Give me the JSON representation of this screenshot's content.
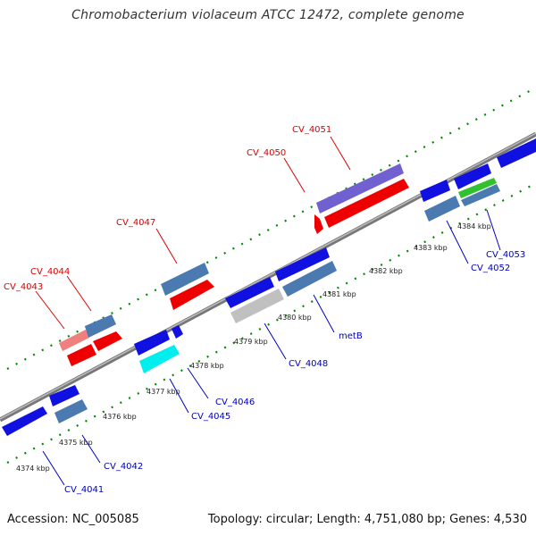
{
  "title": "Chromobacterium violaceum ATCC 12472, complete genome",
  "footer": {
    "accession": "Accession: NC_005085",
    "summary": "Topology: circular; Length: 4,751,080 bp; Genes: 4,530"
  },
  "tick_labels": [
    "4374 kbp",
    "4375 kbp",
    "4376 kbp",
    "4377 kbp",
    "4378 kbp",
    "4379 kbp",
    "4380 kbp",
    "4381 kbp",
    "4382 kbp",
    "4383 kbp",
    "4384 kbp"
  ],
  "gene_labels": {
    "top": [
      "CV_4043",
      "CV_4044",
      "CV_4047",
      "CV_4050",
      "CV_4051"
    ],
    "bottom": [
      "CV_4041",
      "CV_4042",
      "CV_4045",
      "CV_4046",
      "CV_4048",
      "metB",
      "CV_4052",
      "CV_4053"
    ]
  },
  "colors": {
    "top_label": "#dd0000",
    "bottom_label": "#0000bb",
    "blue": "#1010e0",
    "steel": "#4a7ab0",
    "red": "#ee0000",
    "pink": "#f08080",
    "violet": "#7060d0",
    "grey": "#c0c0c0",
    "cyan": "#00ffff",
    "green": "#30c030",
    "backbone": "#888888",
    "ticks": "#008800"
  }
}
